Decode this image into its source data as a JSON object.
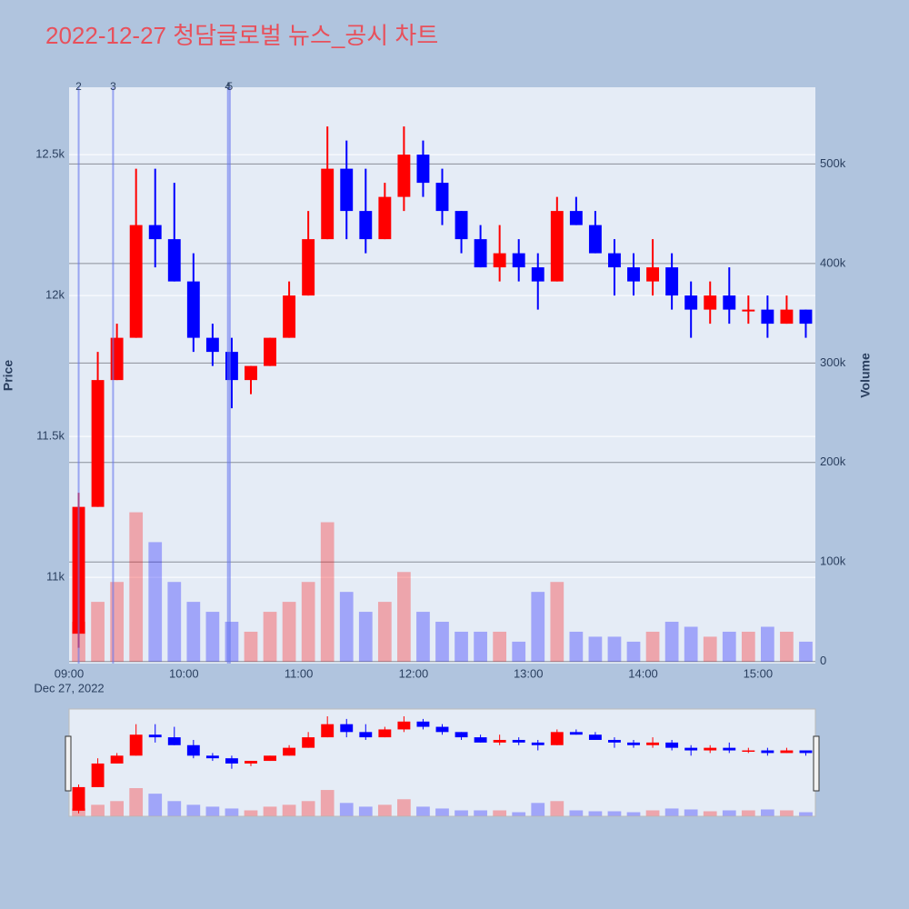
{
  "chart_data": {
    "type": "candlestick",
    "title": "2022-12-27 청담글로벌 뉴스_공시 차트",
    "y_title": "Price",
    "y2_title": "Volume",
    "x_date_label": "Dec 27, 2022",
    "increasing_color": "#ff0000",
    "decreasing_color": "#0000ff",
    "x": [
      "2022-12-27 09:00",
      "2022-12-27 09:10",
      "2022-12-27 09:20",
      "2022-12-27 09:30",
      "2022-12-27 09:40",
      "2022-12-27 09:50",
      "2022-12-27 10:00",
      "2022-12-27 10:10",
      "2022-12-27 10:20",
      "2022-12-27 10:30",
      "2022-12-27 10:40",
      "2022-12-27 10:50",
      "2022-12-27 11:00",
      "2022-12-27 11:10",
      "2022-12-27 11:20",
      "2022-12-27 11:30",
      "2022-12-27 11:40",
      "2022-12-27 11:50",
      "2022-12-27 12:00",
      "2022-12-27 12:10",
      "2022-12-27 12:20",
      "2022-12-27 12:30",
      "2022-12-27 12:40",
      "2022-12-27 12:50",
      "2022-12-27 13:00",
      "2022-12-27 13:10",
      "2022-12-27 13:20",
      "2022-12-27 13:30",
      "2022-12-27 13:40",
      "2022-12-27 13:50",
      "2022-12-27 14:00",
      "2022-12-27 14:10",
      "2022-12-27 14:20",
      "2022-12-27 14:30",
      "2022-12-27 14:40",
      "2022-12-27 14:50",
      "2022-12-27 15:00",
      "2022-12-27 15:10",
      "2022-12-27 15:20"
    ],
    "open": [
      10800,
      11250,
      11700,
      11850,
      12250,
      12200,
      12050,
      11850,
      11800,
      11700,
      11750,
      11850,
      12000,
      12200,
      12450,
      12300,
      12200,
      12350,
      12500,
      12400,
      12300,
      12200,
      12100,
      12150,
      12100,
      12050,
      12300,
      12250,
      12150,
      12100,
      12050,
      12100,
      12000,
      11950,
      12000,
      11950,
      11950,
      11900,
      11950
    ],
    "high": [
      11300,
      11800,
      11900,
      12450,
      12450,
      12400,
      12150,
      11900,
      11850,
      11750,
      11850,
      12050,
      12300,
      12600,
      12550,
      12450,
      12400,
      12600,
      12550,
      12450,
      12300,
      12250,
      12250,
      12200,
      12150,
      12350,
      12350,
      12300,
      12200,
      12150,
      12200,
      12150,
      12050,
      12050,
      12100,
      12000,
      12000,
      12000,
      11950
    ],
    "low": [
      10750,
      11250,
      11700,
      11850,
      12100,
      12050,
      11800,
      11750,
      11600,
      11650,
      11750,
      11850,
      12000,
      12200,
      12200,
      12150,
      12200,
      12300,
      12350,
      12250,
      12150,
      12100,
      12050,
      12050,
      11950,
      12050,
      12250,
      12150,
      12000,
      12000,
      12000,
      11950,
      11850,
      11900,
      11900,
      11900,
      11850,
      11900,
      11850
    ],
    "close": [
      11250,
      11700,
      11850,
      12250,
      12200,
      12050,
      11850,
      11800,
      11700,
      11750,
      11850,
      12000,
      12200,
      12450,
      12300,
      12200,
      12350,
      12500,
      12400,
      12300,
      12200,
      12100,
      12150,
      12100,
      12050,
      12300,
      12250,
      12150,
      12100,
      12050,
      12100,
      12000,
      11950,
      12000,
      11950,
      11950,
      11900,
      11950,
      11900
    ],
    "volume": [
      40000,
      60000,
      80000,
      150000,
      120000,
      80000,
      60000,
      50000,
      40000,
      30000,
      50000,
      60000,
      80000,
      140000,
      70000,
      50000,
      60000,
      90000,
      50000,
      40000,
      30000,
      30000,
      30000,
      20000,
      70000,
      80000,
      30000,
      25000,
      25000,
      20000,
      30000,
      40000,
      35000,
      25000,
      30000,
      30000,
      35000,
      30000,
      20000
    ],
    "xlim": [
      "2022-12-27 09:00",
      "2022-12-27 15:30"
    ],
    "xticks": [
      {
        "value": "2022-12-27 09:00",
        "label": "09:00"
      },
      {
        "value": "2022-12-27 10:00",
        "label": "10:00"
      },
      {
        "value": "2022-12-27 11:00",
        "label": "11:00"
      },
      {
        "value": "2022-12-27 12:00",
        "label": "12:00"
      },
      {
        "value": "2022-12-27 13:00",
        "label": "13:00"
      },
      {
        "value": "2022-12-27 14:00",
        "label": "14:00"
      },
      {
        "value": "2022-12-27 15:00",
        "label": "15:00"
      }
    ],
    "ylim": [
      10694,
      12739
    ],
    "yticks": [
      {
        "value": 11000,
        "label": "11k"
      },
      {
        "value": 11500,
        "label": "11.5k"
      },
      {
        "value": 12000,
        "label": "12k"
      },
      {
        "value": 12500,
        "label": "12.5k"
      }
    ],
    "y2lim": [
      -2000,
      577000
    ],
    "y2ticks": [
      0,
      {
        "value": 100000,
        "label": "100k"
      },
      {
        "value": 200000,
        "label": "200k"
      },
      {
        "value": 300000,
        "label": "300k"
      },
      {
        "value": 400000,
        "label": "400k"
      },
      {
        "value": 500000,
        "label": "500k"
      }
    ],
    "events": [
      {
        "label": "2",
        "x": "2022-12-27 09:05"
      },
      {
        "label": "3",
        "x": "2022-12-27 09:23"
      },
      {
        "label": "4",
        "x": "2022-12-27 10:23"
      },
      {
        "label": "5",
        "x": "2022-12-27 10:24"
      }
    ],
    "grid": true
  }
}
